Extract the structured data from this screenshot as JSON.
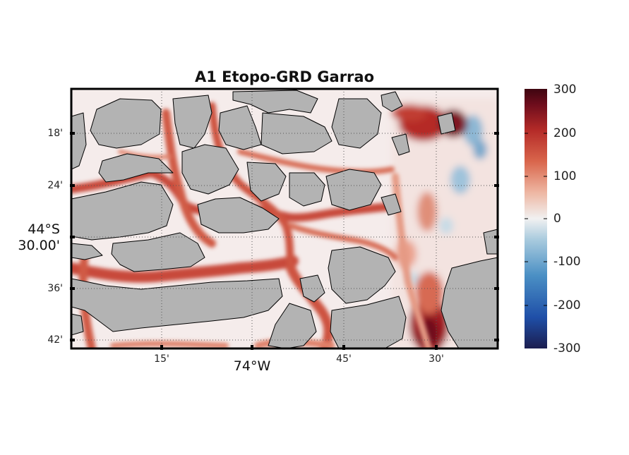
{
  "title": "A1 Etopo-GRD Garrao",
  "x_axis": {
    "minor_ticks": [
      "15'",
      "45'",
      "30'"
    ],
    "major_label": "74°W"
  },
  "y_axis": {
    "minor_ticks": [
      "18'",
      "24'",
      "36'",
      "42'"
    ],
    "major_label_line1": "44°S",
    "major_label_line2": "30.00'"
  },
  "colorbar": {
    "ticks": [
      "300",
      "200",
      "100",
      "0",
      "-100",
      "-200",
      "-300"
    ],
    "range": [
      -300,
      300
    ],
    "colormap": [
      "#1b1d4f",
      "#1f4fa8",
      "#4a8fc4",
      "#a9cbde",
      "#f1f1f1",
      "#eeb7a3",
      "#d9664c",
      "#b52b28",
      "#6e0d1c",
      "#3e0510"
    ]
  },
  "colors": {
    "land": "#b3b3b3",
    "frame": "#000000",
    "grid": "#555555"
  }
}
